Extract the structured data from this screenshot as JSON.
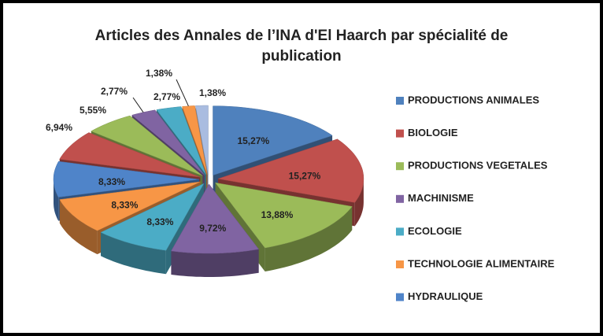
{
  "chart_data": {
    "type": "pie3d",
    "title": [
      "Articles des Annales de l’INA  d'El Haarch par spécialité de",
      "publication"
    ],
    "categories": [
      "PRODUCTIONS ANIMALES",
      "BIOLOGIE",
      "PRODUCTIONS VEGETALES",
      "MACHINISME",
      "ECOLOGIE",
      "TECHNOLOGIE ALIMENTAIRE",
      "HYDRAULIQUE",
      null,
      null,
      null,
      null,
      null,
      null
    ],
    "values": [
      15.27,
      15.27,
      13.88,
      9.72,
      8.33,
      8.33,
      8.33,
      6.94,
      5.55,
      2.77,
      2.77,
      1.38,
      1.38
    ],
    "value_labels": [
      "15,27%",
      "15,27%",
      "13,88%",
      "9,72%",
      "8,33%",
      "8,33%",
      "8,33%",
      "6,94%",
      "5,55%",
      "2,77%",
      "2,77%",
      "1,38%",
      "1,38%"
    ],
    "colors": [
      "#4f81bd",
      "#c0504d",
      "#9bbb59",
      "#8064a2",
      "#4bacc6",
      "#f79646",
      "#4f84c9",
      "#c0504d",
      "#9bbb59",
      "#8064a2",
      "#4bacc6",
      "#f79646",
      "#a9bce0"
    ],
    "legend": "right"
  }
}
